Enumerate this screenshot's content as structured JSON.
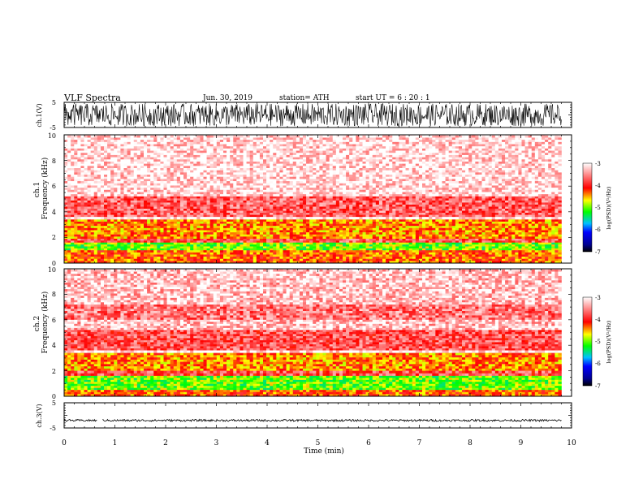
{
  "header": {
    "title": "VLF  Spectra",
    "date": "Jun. 30, 2019",
    "station": "station= ATH",
    "start": "start  UT  =    6  : 20 : 1"
  },
  "chart_data": [
    {
      "type": "line",
      "panel": "ch1-waveform",
      "ylabel": "ch.1(V)",
      "ylim": [
        -5,
        5
      ],
      "yticks": [
        "5",
        "-5"
      ],
      "amplitude_band": [
        -4.5,
        4.5
      ],
      "xlim": [
        0,
        9.8
      ]
    },
    {
      "type": "heatmap",
      "panel": "ch1-spectrogram",
      "ylabel": "ch.1\nFrequency  (kHz)",
      "ylim": [
        0,
        10
      ],
      "yticks": [
        "0",
        "2",
        "4",
        "6",
        "8",
        "10"
      ],
      "xlim": [
        0,
        9.8
      ],
      "bands": [
        {
          "f0": 9.95,
          "f1": 10.0,
          "psd": -3.0
        },
        {
          "f0": 5.2,
          "f1": 9.95,
          "psd": -3.15
        },
        {
          "f0": 3.6,
          "f1": 5.2,
          "psd": -3.7
        },
        {
          "f0": 3.4,
          "f1": 3.6,
          "psd": -3.0
        },
        {
          "f0": 1.9,
          "f1": 3.4,
          "psd": -4.4
        },
        {
          "f0": 1.6,
          "f1": 1.9,
          "psd": -3.8
        },
        {
          "f0": 1.0,
          "f1": 1.6,
          "psd": -5.0
        },
        {
          "f0": 0.0,
          "f1": 1.0,
          "psd": -4.3
        }
      ],
      "colorbar": {
        "label": "log(PSD)(V²/Hz)",
        "min": -7,
        "max": -3,
        "ticks": [
          "-3",
          "-4",
          "-5",
          "-6",
          "-7"
        ]
      }
    },
    {
      "type": "heatmap",
      "panel": "ch2-spectrogram",
      "ylabel": "ch.2\nFrequency  (kHz)",
      "ylim": [
        0,
        10
      ],
      "yticks": [
        "0",
        "2",
        "4",
        "6",
        "8",
        "10"
      ],
      "xlim": [
        0,
        9.8
      ],
      "bands": [
        {
          "f0": 9.95,
          "f1": 10.0,
          "psd": -3.0
        },
        {
          "f0": 7.2,
          "f1": 9.95,
          "psd": -3.25
        },
        {
          "f0": 6.0,
          "f1": 7.2,
          "psd": -3.6
        },
        {
          "f0": 5.2,
          "f1": 6.0,
          "psd": -3.25
        },
        {
          "f0": 3.6,
          "f1": 5.2,
          "psd": -3.75
        },
        {
          "f0": 3.4,
          "f1": 3.6,
          "psd": -3.0
        },
        {
          "f0": 2.0,
          "f1": 3.4,
          "psd": -4.4
        },
        {
          "f0": 1.6,
          "f1": 2.0,
          "psd": -3.8
        },
        {
          "f0": 0.5,
          "f1": 1.6,
          "psd": -5.0
        },
        {
          "f0": 0.0,
          "f1": 0.5,
          "psd": -4.3
        }
      ],
      "colorbar": {
        "label": "log(PSD)(V²/Hz)",
        "min": -7,
        "max": -3,
        "ticks": [
          "-3",
          "-4",
          "-5",
          "-6",
          "-7"
        ]
      }
    },
    {
      "type": "line",
      "panel": "ch3-waveform",
      "ylabel": "ch.3(V)",
      "ylim": [
        -5,
        5
      ],
      "yticks": [
        "5",
        "-5"
      ],
      "level": -2,
      "amplitude_band": [
        -2.4,
        -1.6
      ],
      "gap": [
        0.65,
        0.75
      ],
      "xlim": [
        0,
        9.8
      ]
    }
  ],
  "xaxis": {
    "label": "Time  (min)",
    "range": [
      0,
      10
    ],
    "ticks": [
      "0",
      "1",
      "2",
      "3",
      "4",
      "5",
      "6",
      "7",
      "8",
      "9",
      "10"
    ]
  }
}
